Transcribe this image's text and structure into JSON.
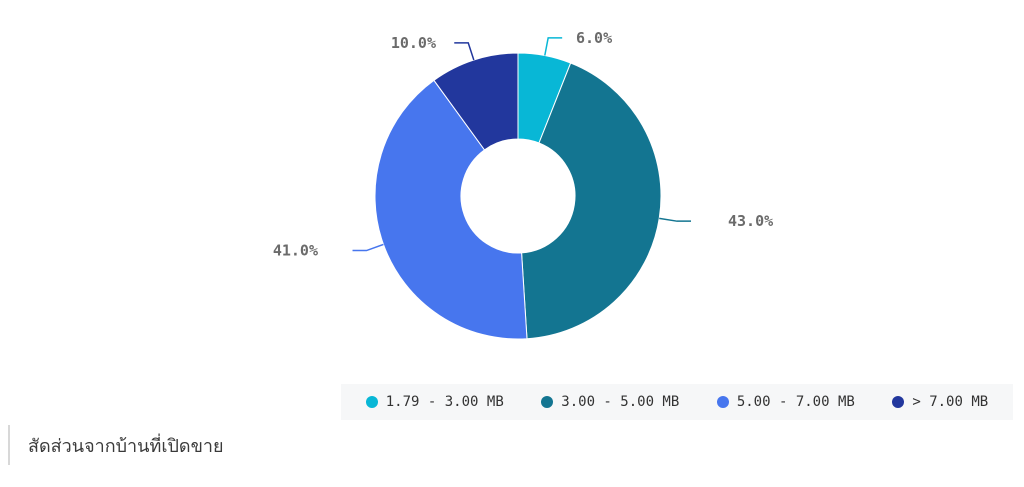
{
  "chart_data": {
    "type": "pie",
    "variant": "donut",
    "categories": [
      "1.79 - 3.00 MB",
      "3.00 - 5.00 MB",
      "5.00 - 7.00 MB",
      "> 7.00 MB"
    ],
    "values": [
      6.0,
      43.0,
      41.0,
      10.0
    ],
    "labels": [
      "6.0%",
      "43.0%",
      "41.0%",
      "10.0%"
    ],
    "colors": [
      "#08b7d6",
      "#137591",
      "#4776ee",
      "#22379d"
    ],
    "legend_position": "bottom-right",
    "title": ""
  },
  "caption": {
    "text": "สัดส่วนจากบ้านที่เปิดขาย"
  }
}
